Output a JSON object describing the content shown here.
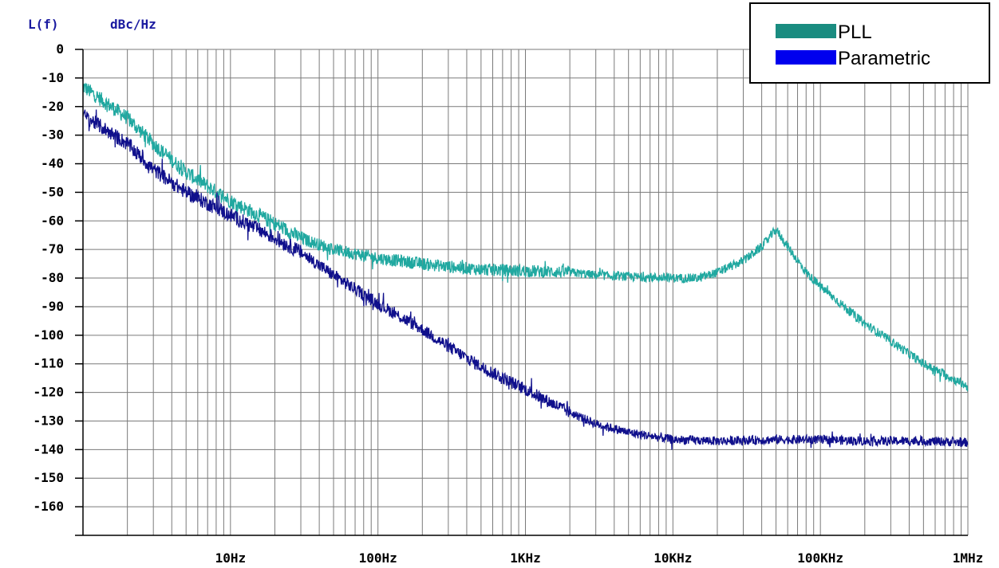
{
  "chart_data": {
    "type": "line",
    "ylabel_left": "L(f)",
    "ylabel_unit": "dBc/Hz",
    "x_scale": "log",
    "xlim": [
      1,
      1000000
    ],
    "ylim": [
      -170,
      0
    ],
    "grid": true,
    "x_tick_labels": [
      {
        "value": 10,
        "label": "10Hz"
      },
      {
        "value": 100,
        "label": "100Hz"
      },
      {
        "value": 1000,
        "label": "1KHz"
      },
      {
        "value": 10000,
        "label": "10KHz"
      },
      {
        "value": 100000,
        "label": "100KHz"
      },
      {
        "value": 1000000,
        "label": "1MHz"
      }
    ],
    "y_ticks": [
      {
        "value": 0,
        "label": "0"
      },
      {
        "value": -10,
        "label": "-10"
      },
      {
        "value": -20,
        "label": "-20"
      },
      {
        "value": -30,
        "label": "-30"
      },
      {
        "value": -40,
        "label": "-40"
      },
      {
        "value": -50,
        "label": "-50"
      },
      {
        "value": -60,
        "label": "-60"
      },
      {
        "value": -70,
        "label": "-70"
      },
      {
        "value": -80,
        "label": "-80"
      },
      {
        "value": -90,
        "label": "-90"
      },
      {
        "value": -100,
        "label": "-100"
      },
      {
        "value": -110,
        "label": "-110"
      },
      {
        "value": -120,
        "label": "-120"
      },
      {
        "value": -130,
        "label": "-130"
      },
      {
        "value": -140,
        "label": "-140"
      },
      {
        "value": -150,
        "label": "-150"
      },
      {
        "value": -160,
        "label": "-160"
      }
    ],
    "legend_position": "top-right",
    "series": [
      {
        "name": "PLL",
        "color": "#20a8a0",
        "legend_color": "#1a8c80",
        "points": [
          [
            1,
            -13
          ],
          [
            2,
            -24
          ],
          [
            3,
            -33
          ],
          [
            5,
            -43
          ],
          [
            10,
            -53
          ],
          [
            20,
            -61
          ],
          [
            30,
            -66
          ],
          [
            50,
            -70
          ],
          [
            100,
            -73
          ],
          [
            200,
            -75
          ],
          [
            300,
            -76
          ],
          [
            500,
            -77
          ],
          [
            1000,
            -77.5
          ],
          [
            2000,
            -78
          ],
          [
            3000,
            -79
          ],
          [
            5000,
            -79.5
          ],
          [
            10000,
            -80
          ],
          [
            15000,
            -80
          ],
          [
            20000,
            -78
          ],
          [
            30000,
            -74
          ],
          [
            40000,
            -69
          ],
          [
            50000,
            -63
          ],
          [
            60000,
            -69
          ],
          [
            80000,
            -78
          ],
          [
            100000,
            -83
          ],
          [
            200000,
            -96
          ],
          [
            300000,
            -102
          ],
          [
            500000,
            -110
          ],
          [
            1000000,
            -118
          ]
        ]
      },
      {
        "name": "Parametric",
        "color": "#10108c",
        "legend_color": "#0000ee",
        "points": [
          [
            1,
            -23
          ],
          [
            2,
            -33
          ],
          [
            3,
            -42
          ],
          [
            5,
            -50
          ],
          [
            10,
            -58
          ],
          [
            20,
            -66
          ],
          [
            30,
            -71
          ],
          [
            50,
            -79
          ],
          [
            100,
            -89
          ],
          [
            200,
            -98
          ],
          [
            300,
            -104
          ],
          [
            500,
            -111
          ],
          [
            1000,
            -119
          ],
          [
            2000,
            -127
          ],
          [
            3000,
            -131
          ],
          [
            5000,
            -134
          ],
          [
            10000,
            -136.5
          ],
          [
            20000,
            -137
          ],
          [
            50000,
            -136.5
          ],
          [
            100000,
            -136.5
          ],
          [
            200000,
            -137
          ],
          [
            500000,
            -137
          ],
          [
            1000000,
            -137.5
          ]
        ]
      }
    ]
  }
}
